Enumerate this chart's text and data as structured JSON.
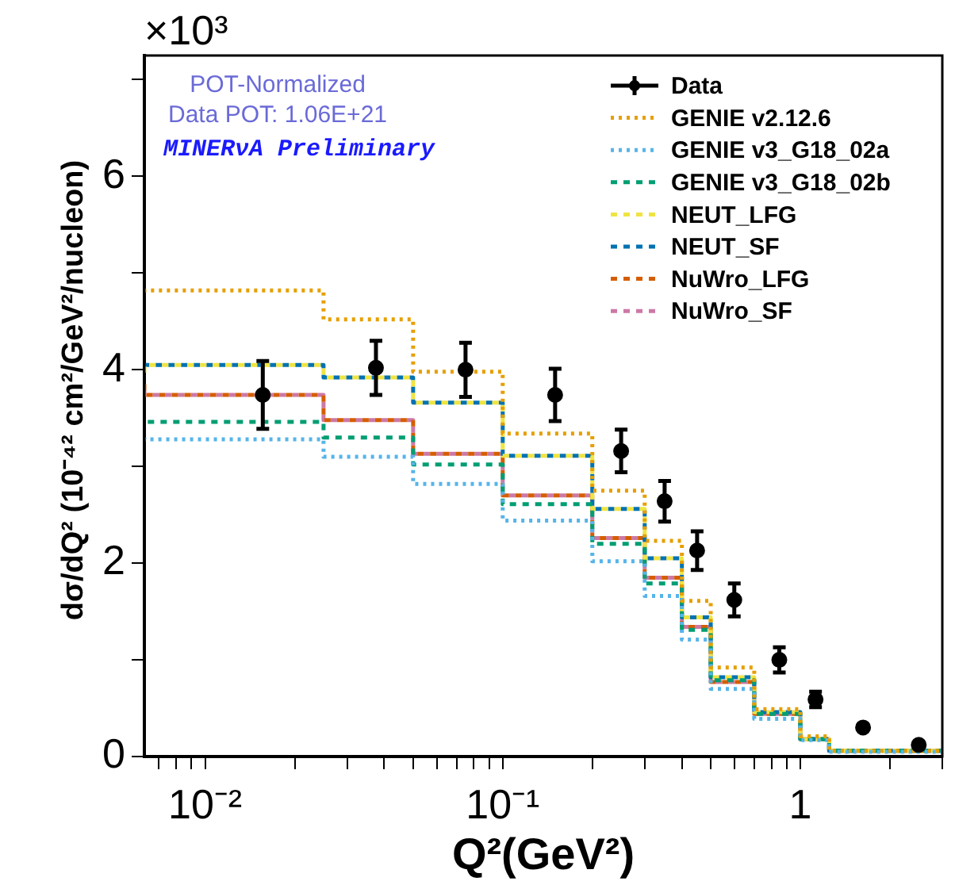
{
  "chart_data": {
    "type": "step",
    "xlabel": "Q²(GeV²)",
    "ylabel": "dσ/dQ² (10⁻⁴² cm²/GeV²/nucleon)",
    "annotations": [
      "×10³",
      "POT-Normalized",
      "Data POT: 1.06E+21",
      "MINERνA Preliminary"
    ],
    "x": [
      0.00625,
      0.025,
      0.05,
      0.1,
      0.2,
      0.3,
      0.4,
      0.5,
      0.7,
      1.0,
      1.25,
      2.0,
      3.0
    ],
    "log": "x",
    "legend": "top right",
    "grid": false,
    "xlim": [
      0.00625,
      3
    ],
    "ylim": [
      0,
      7.25
    ],
    "xticks": [
      {
        "value": 0.007,
        "label": null
      },
      {
        "value": 0.008,
        "label": null
      },
      {
        "value": 0.009,
        "label": null
      },
      {
        "value": 0.01,
        "label": "10⁻²"
      },
      {
        "value": 0.02,
        "label": null
      },
      {
        "value": 0.03,
        "label": null
      },
      {
        "value": 0.04,
        "label": null
      },
      {
        "value": 0.05,
        "label": null
      },
      {
        "value": 0.06,
        "label": null
      },
      {
        "value": 0.07,
        "label": null
      },
      {
        "value": 0.08,
        "label": null
      },
      {
        "value": 0.09,
        "label": null
      },
      {
        "value": 0.1,
        "label": "10⁻¹"
      },
      {
        "value": 0.2,
        "label": null
      },
      {
        "value": 0.3,
        "label": null
      },
      {
        "value": 0.4,
        "label": null
      },
      {
        "value": 0.5,
        "label": null
      },
      {
        "value": 0.6,
        "label": null
      },
      {
        "value": 0.7,
        "label": null
      },
      {
        "value": 0.8,
        "label": null
      },
      {
        "value": 0.9,
        "label": null
      },
      {
        "value": 1,
        "label": "1"
      },
      {
        "value": 2,
        "label": null
      },
      {
        "value": 3,
        "label": null
      }
    ],
    "yticks": [
      0,
      {
        "value": 1,
        "label": null
      },
      2,
      {
        "value": 3,
        "label": null
      },
      4,
      {
        "value": 5,
        "label": null
      },
      6,
      {
        "value": 7,
        "label": null
      }
    ],
    "series": [
      {
        "name": "Data",
        "type": "scatter",
        "color": "#000000",
        "marker": "circle",
        "x": [
          0.015625,
          0.0375,
          0.075,
          0.15,
          0.25,
          0.35,
          0.45,
          0.6,
          0.85,
          1.125,
          1.625,
          2.5
        ],
        "values": [
          3.74,
          4.02,
          4.0,
          3.74,
          3.16,
          2.64,
          2.13,
          1.62,
          1.0,
          0.59,
          0.3,
          0.12
        ],
        "errors": [
          0.35,
          0.28,
          0.28,
          0.27,
          0.22,
          0.21,
          0.2,
          0.17,
          0.13,
          0.08,
          null,
          null
        ]
      },
      {
        "name": "GENIE v2.12.6",
        "color": "#e69f00",
        "line_style": "dotted",
        "values": [
          4.79,
          4.82,
          4.52,
          3.98,
          3.34,
          2.75,
          2.23,
          1.61,
          0.92,
          0.49,
          0.21,
          0.06,
          0.06
        ]
      },
      {
        "name": "GENIE v3_G18_02a",
        "color": "#56b4e9",
        "line_style": "dotted",
        "values": [
          3.3,
          3.28,
          3.1,
          2.82,
          2.44,
          2.02,
          1.66,
          1.21,
          0.7,
          0.39,
          0.17,
          0.05,
          0.05
        ]
      },
      {
        "name": "GENIE v3_G18_02b",
        "color": "#009e73",
        "line_style": "dashed",
        "values": [
          3.49,
          3.46,
          3.3,
          3.02,
          2.61,
          2.2,
          1.79,
          1.31,
          0.79,
          0.44,
          0.18,
          0.06,
          0.06
        ]
      },
      {
        "name": "NEUT_LFG",
        "color": "#f0e442",
        "line_style": "dashed",
        "values": [
          3.97,
          4.05,
          3.92,
          3.66,
          3.11,
          2.56,
          2.05,
          1.44,
          0.82,
          0.46,
          0.18,
          0.06,
          0.06
        ]
      },
      {
        "name": "NEUT_SF",
        "color": "#0072b2",
        "line_style": "dashed",
        "values": [
          3.97,
          4.05,
          3.92,
          3.66,
          3.11,
          2.56,
          2.05,
          1.44,
          0.82,
          0.46,
          0.18,
          0.06,
          0.06
        ]
      },
      {
        "name": "NuWro_LFG",
        "color": "#d55e00",
        "line_style": "dashed",
        "values": [
          3.85,
          3.74,
          3.48,
          3.13,
          2.7,
          2.26,
          1.85,
          1.34,
          0.77,
          0.44,
          0.18,
          0.06,
          0.06
        ]
      },
      {
        "name": "NuWro_SF",
        "color": "#cc79a7",
        "line_style": "dashed",
        "values": [
          3.85,
          3.74,
          3.48,
          3.13,
          2.7,
          2.26,
          1.85,
          1.34,
          0.77,
          0.44,
          0.18,
          0.06,
          0.06
        ]
      }
    ]
  }
}
